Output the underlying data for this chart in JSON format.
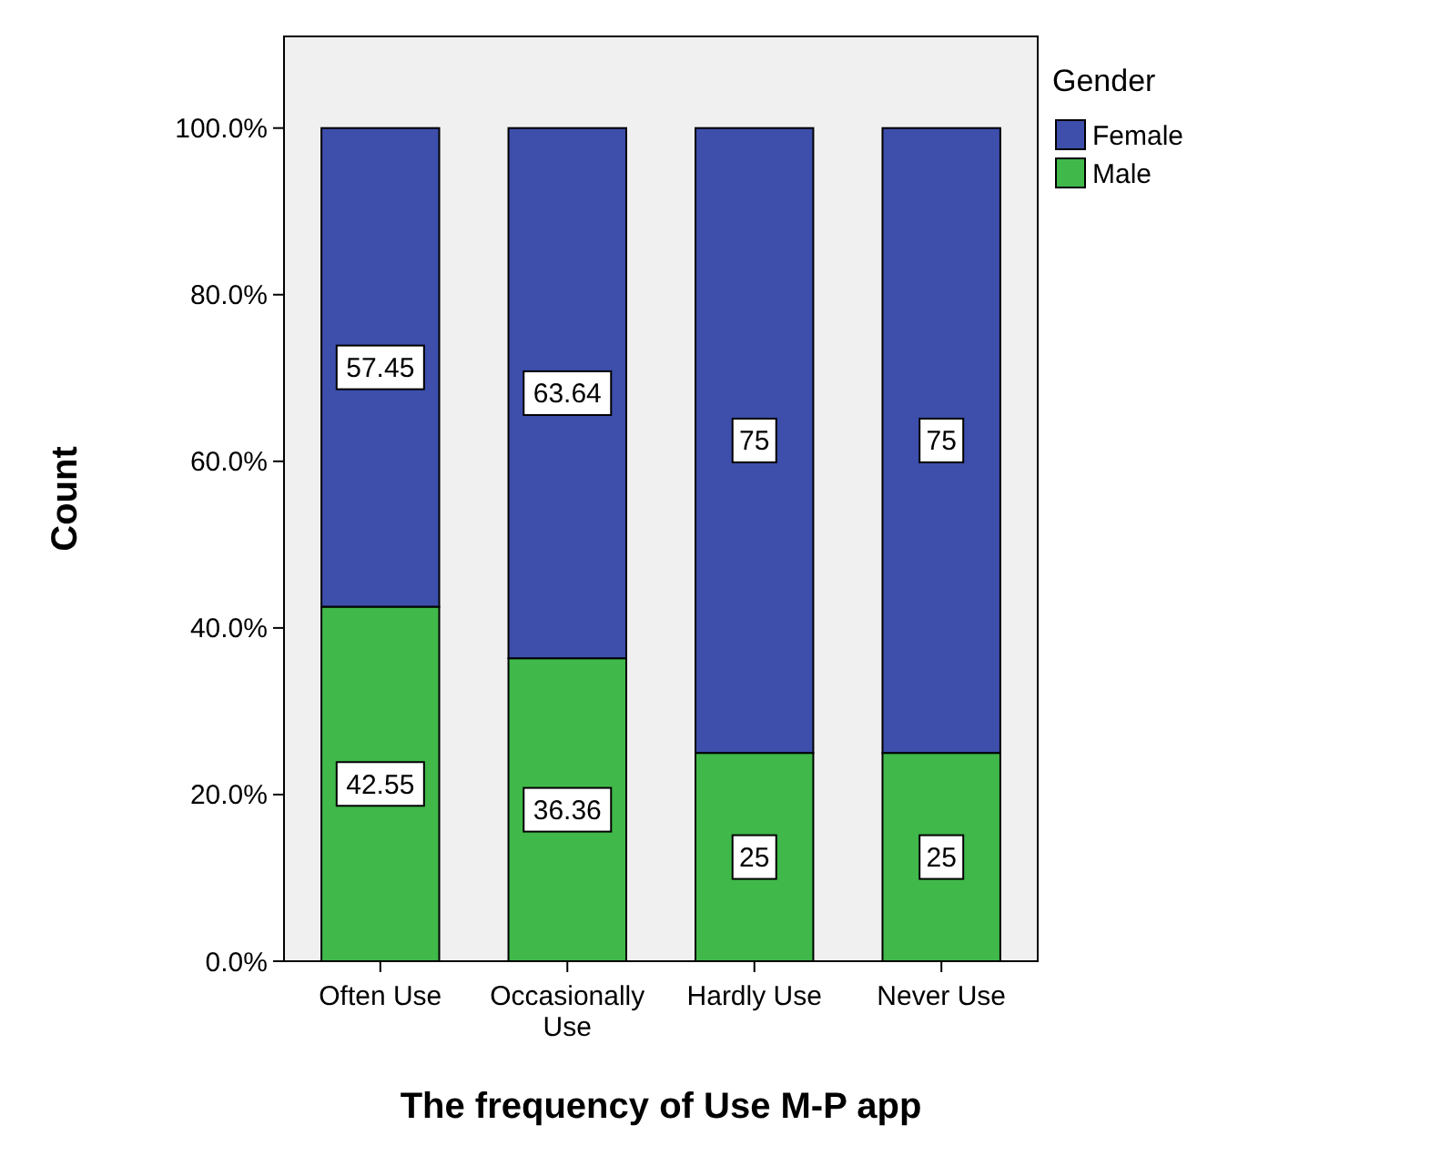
{
  "chart_data": {
    "type": "bar",
    "stacked": true,
    "xlabel": "The frequency of Use M-P app",
    "ylabel": "Count",
    "legend_title": "Gender",
    "categories": [
      "Often Use",
      "Occasionally Use",
      "Hardly Use",
      "Never Use"
    ],
    "series": [
      {
        "name": "Male",
        "color": "#40b84a",
        "values": [
          42.55,
          36.36,
          25,
          25
        ]
      },
      {
        "name": "Female",
        "color": "#3d4eab",
        "values": [
          57.45,
          63.64,
          75,
          75
        ]
      }
    ],
    "ylim": [
      0,
      111
    ],
    "yticks": [
      {
        "value": 0,
        "label": "0.0%"
      },
      {
        "value": 20,
        "label": "20.0%"
      },
      {
        "value": 40,
        "label": "40.0%"
      },
      {
        "value": 60,
        "label": "60.0%"
      },
      {
        "value": 80,
        "label": "80.0%"
      },
      {
        "value": 100,
        "label": "100.0%"
      }
    ],
    "data_labels": true,
    "legend": "top right",
    "grid": false
  }
}
